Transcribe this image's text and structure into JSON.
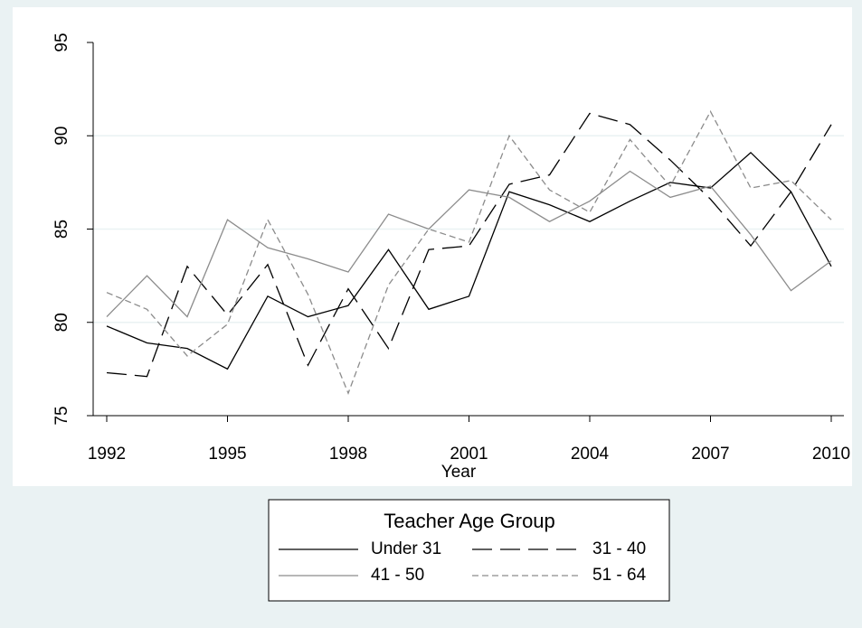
{
  "chart_data": {
    "type": "line",
    "x_label": "Year",
    "x": [
      1992,
      1993,
      1994,
      1995,
      1996,
      1997,
      1998,
      1999,
      2000,
      2001,
      2002,
      2003,
      2004,
      2005,
      2006,
      2007,
      2008,
      2009,
      2010
    ],
    "xlim": [
      1992,
      2010
    ],
    "xticks": [
      1992,
      1995,
      1998,
      2001,
      2004,
      2007,
      2010
    ],
    "ylim": [
      75,
      95
    ],
    "yticks": [
      75,
      80,
      85,
      90,
      95
    ],
    "grid": true,
    "legend_title": "Teacher Age Group",
    "legend_position": "bottom",
    "series": [
      {
        "name": "Under 31",
        "color": "#000000",
        "dash": "solid",
        "values": [
          79.8,
          78.9,
          78.6,
          77.5,
          81.4,
          80.3,
          80.9,
          83.9,
          80.7,
          81.4,
          87.0,
          86.3,
          85.4,
          86.5,
          87.5,
          87.2,
          89.1,
          87.0,
          83.0
        ]
      },
      {
        "name": "31 - 40",
        "color": "#000000",
        "dash": "longdash",
        "values": [
          77.3,
          77.1,
          83.0,
          80.4,
          83.1,
          77.7,
          81.8,
          78.6,
          83.9,
          84.1,
          87.4,
          87.9,
          91.2,
          90.6,
          88.7,
          86.6,
          84.1,
          87.0,
          90.6
        ]
      },
      {
        "name": "41 - 50",
        "color": "#8c8c8c",
        "dash": "solid",
        "values": [
          80.3,
          82.5,
          80.3,
          85.5,
          84.0,
          83.4,
          82.7,
          85.8,
          85.0,
          87.1,
          86.7,
          85.4,
          86.5,
          88.1,
          86.7,
          87.3,
          84.7,
          81.7,
          83.3
        ]
      },
      {
        "name": "51 - 64",
        "color": "#8c8c8c",
        "dash": "shortdash",
        "values": [
          81.6,
          80.7,
          78.2,
          79.9,
          85.5,
          81.5,
          76.2,
          82.0,
          85.0,
          84.3,
          90.0,
          87.1,
          85.9,
          89.8,
          87.3,
          91.3,
          87.2,
          87.6,
          85.5
        ]
      }
    ]
  }
}
